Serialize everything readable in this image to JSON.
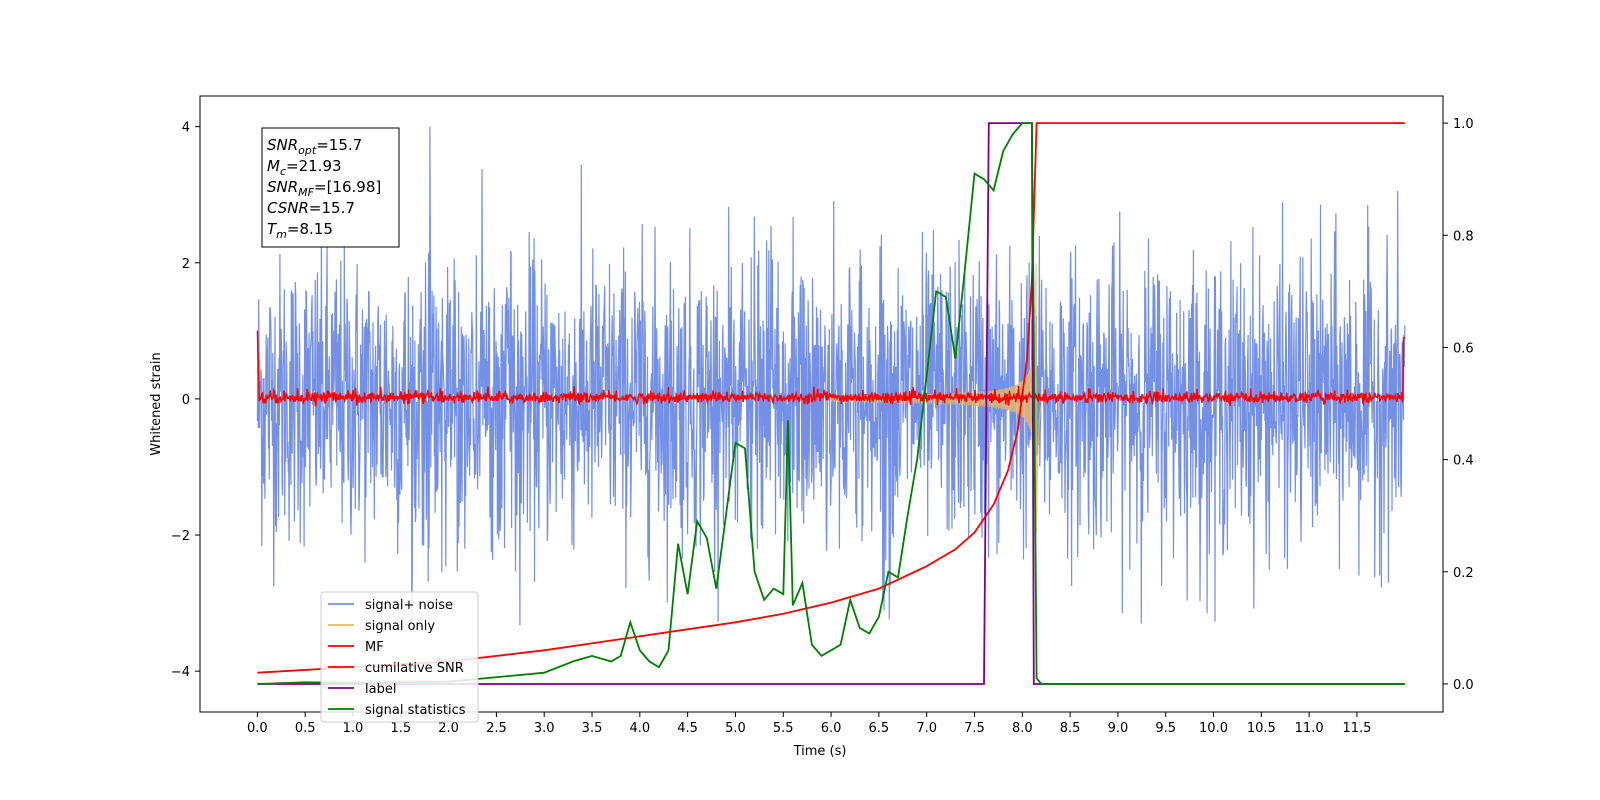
{
  "chart_data": {
    "type": "line",
    "xlabel": "Time (s)",
    "ylabel": "Whitened strain",
    "xlim": [
      -0.6,
      12.4
    ],
    "ylim_left": [
      -4.6,
      4.45
    ],
    "ylim_right": [
      -0.05,
      1.0483
    ],
    "x_ticks": [
      "0.0",
      "0.5",
      "1.0",
      "1.5",
      "2.0",
      "2.5",
      "3.0",
      "3.5",
      "4.0",
      "4.5",
      "5.0",
      "5.5",
      "6.0",
      "6.5",
      "7.0",
      "7.5",
      "8.0",
      "8.5",
      "9.0",
      "9.5",
      "10.0",
      "10.5",
      "11.0",
      "11.5"
    ],
    "y_ticks_left": [
      "4",
      "2",
      "0",
      "−2",
      "−4"
    ],
    "y_ticks_right": [
      "1.0",
      "0.8",
      "0.6",
      "0.4",
      "0.2",
      "0.0"
    ],
    "grid": false,
    "annotation": [
      {
        "sym": "SNR",
        "sub": "opt",
        "val": "=15.7"
      },
      {
        "sym": "M",
        "sub": "c",
        "val": "=21.93"
      },
      {
        "sym": "SNR",
        "sub": "MF",
        "val": "=[16.98]"
      },
      {
        "sym": "CSNR",
        "sub": "",
        "val": "=15.7"
      },
      {
        "sym": "T",
        "sub": "m",
        "val": "=8.15"
      }
    ],
    "legend_position": "lower-left",
    "series": [
      {
        "name": "signal+ noise",
        "color": "#7390e6",
        "axis": "left",
        "kind": "noise",
        "amplitude_range": [
          -3.4,
          4.05
        ],
        "t_range": [
          0.0,
          12.0
        ]
      },
      {
        "name": "signal only",
        "color": "#e6b870",
        "axis": "left",
        "kind": "chirp",
        "merger_time": 8.15,
        "peak_amplitude": 2.0
      },
      {
        "name": "MF",
        "color": "#ff0000",
        "axis": "left",
        "kind": "matched-filter",
        "t_range": [
          0.0,
          12.0
        ]
      },
      {
        "name": "cumilative SNR",
        "color": "#ff0000",
        "axis": "right",
        "x": [
          0.0,
          1.0,
          2.0,
          3.0,
          4.0,
          5.0,
          5.5,
          6.0,
          6.5,
          7.0,
          7.3,
          7.5,
          7.7,
          7.85,
          7.95,
          8.05,
          8.1,
          8.15,
          12.0
        ],
        "y": [
          0.02,
          0.03,
          0.04,
          0.06,
          0.085,
          0.11,
          0.125,
          0.145,
          0.17,
          0.21,
          0.24,
          0.27,
          0.32,
          0.38,
          0.45,
          0.58,
          0.72,
          1.0,
          1.0
        ]
      },
      {
        "name": "label",
        "color": "#800080",
        "axis": "right",
        "x": [
          0.0,
          7.6,
          7.65,
          8.1,
          8.12,
          12.0
        ],
        "y": [
          0.0,
          0.0,
          1.0,
          1.0,
          0.0,
          0.0
        ]
      },
      {
        "name": "signal statistics",
        "color": "#008000",
        "axis": "right",
        "x": [
          0.0,
          0.5,
          1.0,
          2.0,
          3.0,
          3.3,
          3.5,
          3.7,
          3.8,
          3.9,
          4.0,
          4.1,
          4.2,
          4.3,
          4.4,
          4.5,
          4.6,
          4.7,
          4.8,
          4.9,
          5.0,
          5.1,
          5.2,
          5.3,
          5.4,
          5.5,
          5.55,
          5.6,
          5.7,
          5.8,
          5.9,
          6.0,
          6.1,
          6.2,
          6.3,
          6.4,
          6.5,
          6.6,
          6.7,
          6.8,
          6.9,
          7.0,
          7.1,
          7.2,
          7.3,
          7.4,
          7.5,
          7.6,
          7.7,
          7.8,
          7.9,
          8.0,
          8.1,
          8.15,
          8.2,
          12.0
        ],
        "y": [
          0.0,
          0.003,
          0.002,
          0.004,
          0.02,
          0.04,
          0.05,
          0.04,
          0.05,
          0.11,
          0.06,
          0.04,
          0.03,
          0.06,
          0.25,
          0.16,
          0.29,
          0.26,
          0.17,
          0.3,
          0.43,
          0.42,
          0.2,
          0.15,
          0.17,
          0.16,
          0.47,
          0.14,
          0.18,
          0.07,
          0.05,
          0.06,
          0.07,
          0.15,
          0.1,
          0.09,
          0.12,
          0.2,
          0.19,
          0.3,
          0.4,
          0.55,
          0.7,
          0.69,
          0.58,
          0.74,
          0.91,
          0.9,
          0.88,
          0.95,
          0.98,
          1.0,
          1.0,
          0.01,
          0.0,
          0.0
        ]
      }
    ]
  }
}
